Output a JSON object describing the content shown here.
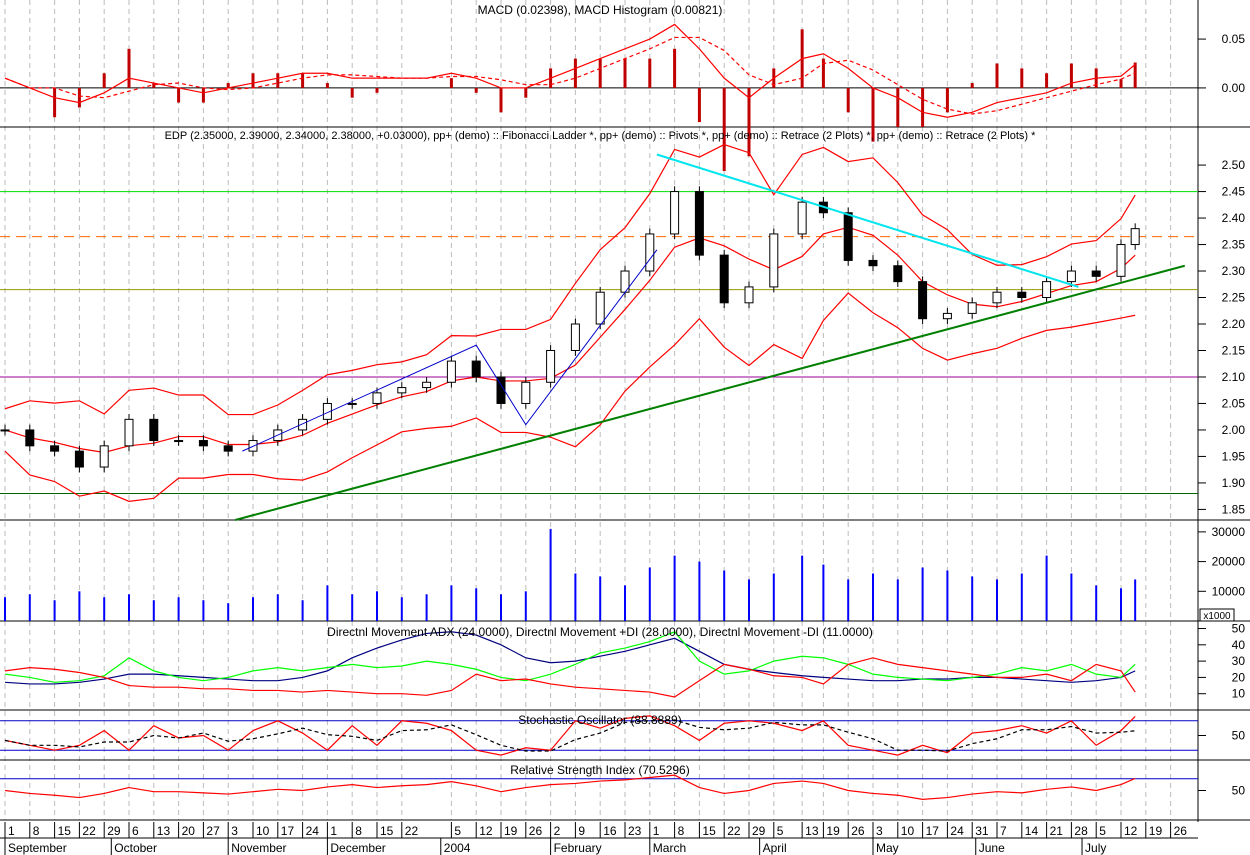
{
  "chart_data": [
    {
      "type": "line",
      "panel": "macd",
      "title": "MACD (0.02398), MACD Histogram (0.00821)",
      "yticks": [
        "0.05",
        "0.00"
      ],
      "ylim": [
        -0.04,
        0.09
      ],
      "macd": [
        0.01,
        0.0,
        -0.01,
        -0.015,
        -0.005,
        0.01,
        0.005,
        0.0,
        -0.005,
        0.0,
        0.005,
        0.01,
        0.015,
        0.015,
        0.01,
        0.01,
        0.01,
        0.01,
        0.015,
        0.01,
        0.0,
        0.0,
        0.01,
        0.02,
        0.03,
        0.04,
        0.05,
        0.065,
        0.04,
        0.01,
        -0.01,
        0.01,
        0.03,
        0.035,
        0.02,
        0.0,
        -0.01,
        -0.025,
        -0.03,
        -0.025,
        -0.015,
        -0.01,
        -0.005,
        0.005,
        0.01,
        0.012,
        0.024
      ],
      "colors": {
        "macd": "#ff0000",
        "signal": "#ff0000",
        "histogram": "#c00000"
      }
    },
    {
      "type": "candlestick",
      "panel": "price",
      "title": "EDP (2.35000, 2.39000, 2.34000, 2.38000, +0.03000), pp+ (demo) :: Fibonacci Ladder *, pp+ (demo) :: Pivots *, pp+ (demo) :: Retrace (2 Plots) *, pp+ (demo) :: Retrace (2 Plots) *",
      "yticks": [
        "2.50",
        "2.45",
        "2.40",
        "2.35",
        "2.30",
        "2.25",
        "2.20",
        "2.15",
        "2.10",
        "2.05",
        "2.00",
        "1.95",
        "1.90",
        "1.85"
      ],
      "ylim": [
        1.83,
        2.57
      ],
      "dates": [
        "2003-09-01",
        "2003-09-08",
        "2003-09-15",
        "2003-09-22",
        "2003-09-29",
        "2003-10-06",
        "2003-10-13",
        "2003-10-20",
        "2003-10-27",
        "2003-11-03",
        "2003-11-10",
        "2003-11-17",
        "2003-11-24",
        "2003-12-01",
        "2003-12-08",
        "2003-12-15",
        "2003-12-22",
        "2003-12-29",
        "2004-01-05",
        "2004-01-12",
        "2004-01-19",
        "2004-01-26",
        "2004-02-02",
        "2004-02-09",
        "2004-02-16",
        "2004-02-23",
        "2004-03-01",
        "2004-03-08",
        "2004-03-15",
        "2004-03-22",
        "2004-03-29",
        "2004-04-05",
        "2004-04-13",
        "2004-04-19",
        "2004-04-26",
        "2004-05-03",
        "2004-05-10",
        "2004-05-17",
        "2004-05-24",
        "2004-05-31",
        "2004-06-07",
        "2004-06-14",
        "2004-06-21",
        "2004-06-28",
        "2004-07-05",
        "2004-07-12",
        "2004-07-16"
      ],
      "close": [
        2.0,
        1.97,
        1.96,
        1.93,
        1.97,
        2.02,
        1.98,
        1.98,
        1.97,
        1.96,
        1.98,
        2.0,
        2.02,
        2.05,
        2.05,
        2.07,
        2.08,
        2.09,
        2.13,
        2.1,
        2.05,
        2.09,
        2.15,
        2.2,
        2.26,
        2.3,
        2.37,
        2.45,
        2.33,
        2.24,
        2.27,
        2.37,
        2.43,
        2.41,
        2.32,
        2.31,
        2.28,
        2.21,
        2.22,
        2.24,
        2.26,
        2.25,
        2.28,
        2.3,
        2.29,
        2.35,
        2.38
      ],
      "levels": [
        {
          "value": 2.45,
          "color": "#00dd00",
          "style": "solid"
        },
        {
          "value": 2.365,
          "color": "#ff6600",
          "style": "dashed"
        },
        {
          "value": 2.265,
          "color": "#999900",
          "style": "solid"
        },
        {
          "value": 2.1,
          "color": "#990099",
          "style": "solid"
        },
        {
          "value": 1.88,
          "color": "#006600",
          "style": "solid"
        }
      ],
      "trendlines": [
        {
          "color": "#008000",
          "points": [
            [
              "2003-11-05",
              1.83
            ],
            [
              "2004-07-30",
              2.31
            ]
          ]
        },
        {
          "color": "#00e5ee",
          "points": [
            [
              "2004-03-03",
              2.52
            ],
            [
              "2004-06-30",
              2.27
            ]
          ]
        },
        {
          "color": "#0000cc",
          "points": [
            [
              "2003-11-07",
              1.96
            ],
            [
              "2004-01-12",
              2.16
            ],
            [
              "2004-01-26",
              2.01
            ],
            [
              "2004-03-03",
              2.34
            ]
          ]
        }
      ]
    },
    {
      "type": "bar",
      "panel": "volume",
      "yticks": [
        "30000",
        "20000",
        "10000"
      ],
      "unit": "x1000",
      "ylim": [
        0,
        34000
      ],
      "values": [
        8000,
        9000,
        7000,
        10000,
        8000,
        9000,
        7000,
        8000,
        7000,
        6000,
        8000,
        9000,
        7000,
        12000,
        9000,
        10000,
        8000,
        9000,
        12000,
        11000,
        9000,
        10000,
        31000,
        16000,
        15000,
        12000,
        18000,
        22000,
        20000,
        17000,
        14000,
        16000,
        22000,
        19000,
        14000,
        16000,
        14000,
        18000,
        17000,
        15000,
        14000,
        16000,
        22000,
        16000,
        12000,
        11000,
        14000
      ],
      "color": "#0000ff"
    },
    {
      "type": "line",
      "panel": "dmi",
      "title": "Directnl Movement ADX (24.0000), Directnl Movement +DI (28.0000), Directnl Movement -DI (11.0000)",
      "yticks": [
        "50",
        "40",
        "30",
        "20",
        "10"
      ],
      "ylim": [
        0,
        54
      ],
      "series": [
        {
          "key": "adx",
          "color": "#000080",
          "values": [
            17,
            16,
            16,
            17,
            19,
            22,
            22,
            21,
            20,
            19,
            18,
            18,
            20,
            24,
            32,
            38,
            43,
            47,
            48,
            46,
            40,
            32,
            29,
            30,
            33,
            36,
            40,
            44,
            36,
            28,
            25,
            23,
            21,
            20,
            19,
            18,
            18,
            19,
            19,
            20,
            20,
            19,
            18,
            17,
            18,
            20,
            24
          ]
        },
        {
          "key": "plus_di",
          "color": "#00ff00",
          "values": [
            22,
            20,
            17,
            18,
            21,
            32,
            24,
            20,
            18,
            20,
            24,
            26,
            24,
            26,
            28,
            26,
            27,
            30,
            28,
            25,
            20,
            18,
            22,
            28,
            35,
            38,
            42,
            48,
            30,
            22,
            24,
            30,
            33,
            32,
            28,
            22,
            20,
            19,
            18,
            20,
            22,
            26,
            24,
            28,
            22,
            20,
            28
          ]
        },
        {
          "key": "minus_di",
          "color": "#ff0000",
          "values": [
            24,
            26,
            25,
            23,
            20,
            15,
            14,
            14,
            13,
            13,
            12,
            12,
            11,
            12,
            11,
            10,
            10,
            9,
            12,
            22,
            18,
            19,
            16,
            14,
            13,
            12,
            11,
            8,
            18,
            28,
            25,
            21,
            20,
            16,
            28,
            32,
            28,
            26,
            24,
            22,
            20,
            20,
            22,
            18,
            28,
            24,
            11
          ]
        }
      ]
    },
    {
      "type": "line",
      "panel": "stochastic",
      "title": "Stochastic Oscillator (88.8889)",
      "yticks": [
        "50"
      ],
      "ylim": [
        0,
        100
      ],
      "bands": [
        80,
        20
      ],
      "values": [
        40,
        30,
        20,
        30,
        60,
        20,
        70,
        45,
        50,
        20,
        60,
        80,
        55,
        20,
        70,
        30,
        80,
        75,
        60,
        20,
        10,
        25,
        20,
        80,
        65,
        85,
        90,
        70,
        40,
        75,
        80,
        75,
        60,
        80,
        30,
        20,
        10,
        30,
        15,
        55,
        60,
        70,
        55,
        80,
        30,
        60,
        89
      ],
      "colors": {
        "k": "#ff0000",
        "d": "#000000",
        "bands": "#0000cc"
      }
    },
    {
      "type": "line",
      "panel": "rsi",
      "title": "Relative Strength Index (70.5296)",
      "yticks": [
        "50"
      ],
      "ylim": [
        0,
        100
      ],
      "bands": [
        70
      ],
      "values": [
        50,
        45,
        42,
        38,
        45,
        55,
        48,
        48,
        46,
        44,
        48,
        52,
        50,
        56,
        60,
        55,
        58,
        60,
        65,
        58,
        48,
        55,
        60,
        62,
        66,
        68,
        72,
        76,
        55,
        45,
        50,
        62,
        66,
        62,
        50,
        45,
        42,
        35,
        38,
        44,
        48,
        46,
        52,
        56,
        50,
        60,
        70.5
      ],
      "colors": {
        "line": "#ff0000",
        "bands": "#0000cc"
      }
    }
  ],
  "x_axis": {
    "day_ticks": [
      {
        "date": "2003-09-01",
        "label": "1"
      },
      {
        "date": "2003-09-08",
        "label": "8"
      },
      {
        "date": "2003-09-15",
        "label": "15"
      },
      {
        "date": "2003-09-22",
        "label": "22"
      },
      {
        "date": "2003-09-29",
        "label": "29"
      },
      {
        "date": "2003-10-06",
        "label": "6"
      },
      {
        "date": "2003-10-13",
        "label": "13"
      },
      {
        "date": "2003-10-20",
        "label": "20"
      },
      {
        "date": "2003-10-27",
        "label": "27"
      },
      {
        "date": "2003-11-03",
        "label": "3"
      },
      {
        "date": "2003-11-10",
        "label": "10"
      },
      {
        "date": "2003-11-17",
        "label": "17"
      },
      {
        "date": "2003-11-24",
        "label": "24"
      },
      {
        "date": "2003-12-01",
        "label": "1"
      },
      {
        "date": "2003-12-08",
        "label": "8"
      },
      {
        "date": "2003-12-15",
        "label": "15"
      },
      {
        "date": "2003-12-22",
        "label": "22"
      },
      {
        "date": "2004-01-05",
        "label": "5"
      },
      {
        "date": "2004-01-12",
        "label": "12"
      },
      {
        "date": "2004-01-19",
        "label": "19"
      },
      {
        "date": "2004-01-26",
        "label": "26"
      },
      {
        "date": "2004-02-02",
        "label": "2"
      },
      {
        "date": "2004-02-09",
        "label": "9"
      },
      {
        "date": "2004-02-16",
        "label": "16"
      },
      {
        "date": "2004-02-23",
        "label": "23"
      },
      {
        "date": "2004-03-01",
        "label": "1"
      },
      {
        "date": "2004-03-08",
        "label": "8"
      },
      {
        "date": "2004-03-15",
        "label": "15"
      },
      {
        "date": "2004-03-22",
        "label": "22"
      },
      {
        "date": "2004-03-29",
        "label": "29"
      },
      {
        "date": "2004-04-05",
        "label": "5"
      },
      {
        "date": "2004-04-13",
        "label": "13"
      },
      {
        "date": "2004-04-19",
        "label": "19"
      },
      {
        "date": "2004-04-26",
        "label": "26"
      },
      {
        "date": "2004-05-03",
        "label": "3"
      },
      {
        "date": "2004-05-10",
        "label": "10"
      },
      {
        "date": "2004-05-17",
        "label": "17"
      },
      {
        "date": "2004-05-24",
        "label": "24"
      },
      {
        "date": "2004-05-31",
        "label": "31"
      },
      {
        "date": "2004-06-07",
        "label": "7"
      },
      {
        "date": "2004-06-14",
        "label": "14"
      },
      {
        "date": "2004-06-21",
        "label": "21"
      },
      {
        "date": "2004-06-28",
        "label": "28"
      },
      {
        "date": "2004-07-05",
        "label": "5"
      },
      {
        "date": "2004-07-12",
        "label": "12"
      },
      {
        "date": "2004-07-19",
        "label": "19"
      },
      {
        "date": "2004-07-26",
        "label": "26"
      }
    ],
    "months": [
      {
        "date": "2003-09-01",
        "label": "September"
      },
      {
        "date": "2003-10-01",
        "label": "October"
      },
      {
        "date": "2003-11-03",
        "label": "November"
      },
      {
        "date": "2003-12-01",
        "label": "December"
      },
      {
        "date": "2004-01-02",
        "label": "2004"
      },
      {
        "date": "2004-02-02",
        "label": "February"
      },
      {
        "date": "2004-03-01",
        "label": "March"
      },
      {
        "date": "2004-04-01",
        "label": "April"
      },
      {
        "date": "2004-05-03",
        "label": "May"
      },
      {
        "date": "2004-06-01",
        "label": "June"
      },
      {
        "date": "2004-07-01",
        "label": "July"
      }
    ]
  }
}
